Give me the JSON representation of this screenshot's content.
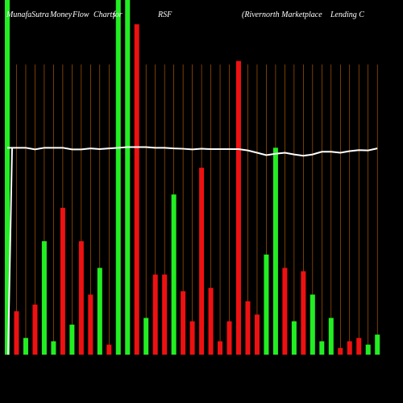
{
  "chart_data": {
    "type": "bar",
    "title_parts": [
      "MunafaSutra",
      "Money",
      "Flow",
      "Charts",
      "for",
      "RSF",
      "(Rivernorth Marketplace",
      "Lending C"
    ],
    "grid": true,
    "colors": {
      "up": "#22ee22",
      "down": "#ee1111",
      "grid": "#cc6600",
      "line": "#ffffff",
      "background": "#000000"
    },
    "ylim": [
      0,
      100
    ],
    "series": [
      {
        "values": [
          100,
          13,
          5,
          15,
          34,
          4,
          44,
          9,
          34,
          18,
          26,
          3,
          100,
          100,
          99,
          11,
          24,
          24,
          48,
          19,
          10,
          56,
          20,
          4,
          10,
          88,
          16,
          12,
          30,
          62,
          26,
          10,
          25,
          18,
          4,
          11,
          2,
          4,
          5,
          3,
          6
        ]
      },
      {
        "dirs": [
          "up",
          "down",
          "up",
          "down",
          "up",
          "up",
          "down",
          "up",
          "down",
          "down",
          "up",
          "down",
          "up",
          "up",
          "down",
          "up",
          "down",
          "down",
          "up",
          "down",
          "down",
          "down",
          "down",
          "down",
          "down",
          "down",
          "down",
          "down",
          "up",
          "up",
          "down",
          "up",
          "down",
          "up",
          "up",
          "up",
          "down",
          "down",
          "down",
          "up",
          "up"
        ]
      }
    ],
    "line_values": [
      62,
      62,
      62,
      61.5,
      62,
      62,
      62,
      61.5,
      61.5,
      61.8,
      61.6,
      61.8,
      62,
      62.2,
      62.2,
      62.2,
      62,
      62,
      61.8,
      61.7,
      61.5,
      61.7,
      61.6,
      61.6,
      61.6,
      61.6,
      61.2,
      60.5,
      59.8,
      60.2,
      60.5,
      60,
      59.6,
      60,
      60.8,
      60.8,
      60.5,
      61,
      61.3,
      61.2,
      61.8
    ]
  }
}
